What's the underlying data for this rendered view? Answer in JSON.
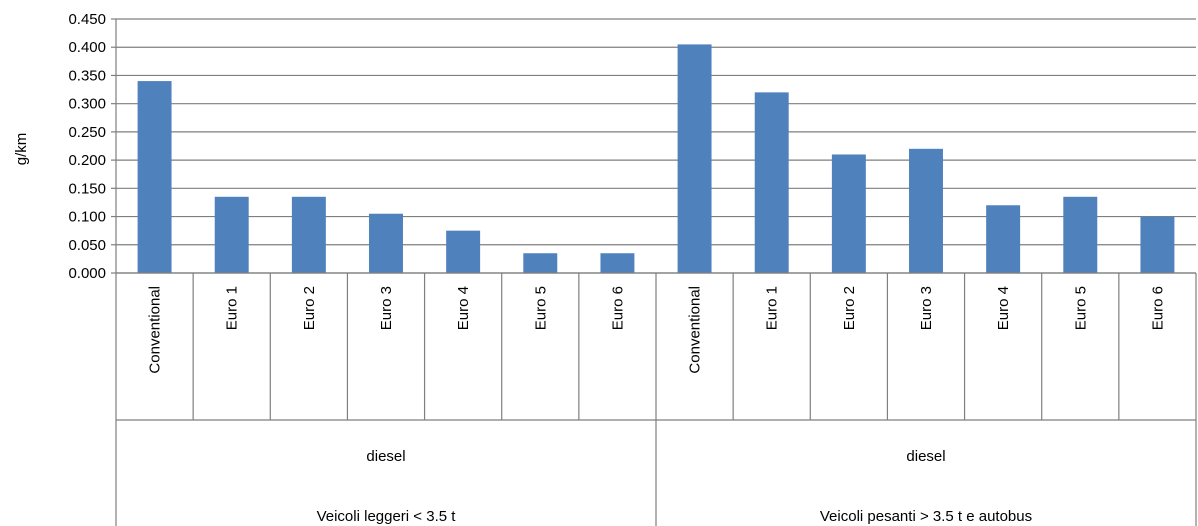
{
  "chart_data": {
    "type": "bar",
    "title": "",
    "ylabel": "g/km",
    "xlabel": "",
    "ylim": [
      0,
      0.45
    ],
    "yticks": [
      "0.000",
      "0.050",
      "0.100",
      "0.150",
      "0.200",
      "0.250",
      "0.300",
      "0.350",
      "0.400",
      "0.450"
    ],
    "grid": true,
    "bar_color": "#4F81BD",
    "categories": [
      "Conventional",
      "Euro 1",
      "Euro 2",
      "Euro 3",
      "Euro 4",
      "Euro 5",
      "Euro 6",
      "Conventional",
      "Euro 1",
      "Euro 2",
      "Euro 3",
      "Euro 4",
      "Euro 5",
      "Euro 6"
    ],
    "values": [
      0.34,
      0.135,
      0.135,
      0.105,
      0.075,
      0.035,
      0.035,
      0.405,
      0.32,
      0.21,
      0.22,
      0.12,
      0.135,
      0.1
    ],
    "groups": [
      {
        "fuel": "diesel",
        "label": "Veicoli leggeri < 3.5 t"
      },
      {
        "fuel": "diesel",
        "label": "Veicoli pesanti > 3.5 t e autobus"
      }
    ]
  }
}
